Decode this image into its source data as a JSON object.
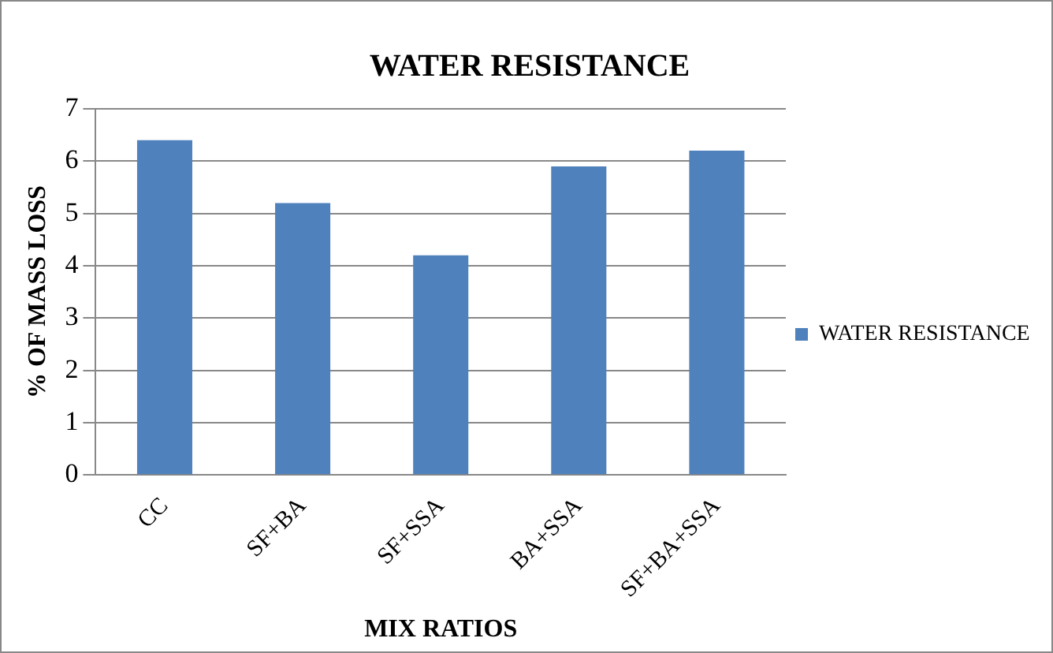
{
  "chart_data": {
    "type": "bar",
    "title": "WATER RESISTANCE",
    "xlabel": "MIX RATIOS",
    "ylabel": "% OF MASS LOSS",
    "categories": [
      "CC",
      "SF+BA",
      "SF+SSA",
      "BA+SSA",
      "SF+BA+SSA"
    ],
    "series": [
      {
        "name": "WATER RESISTANCE",
        "color": "#4f81bd",
        "values": [
          6.4,
          5.2,
          4.2,
          5.9,
          6.2
        ]
      }
    ],
    "ylim": [
      0,
      7
    ],
    "yticks": [
      0,
      1,
      2,
      3,
      4,
      5,
      6,
      7
    ],
    "grid": "y",
    "legend": "right"
  }
}
